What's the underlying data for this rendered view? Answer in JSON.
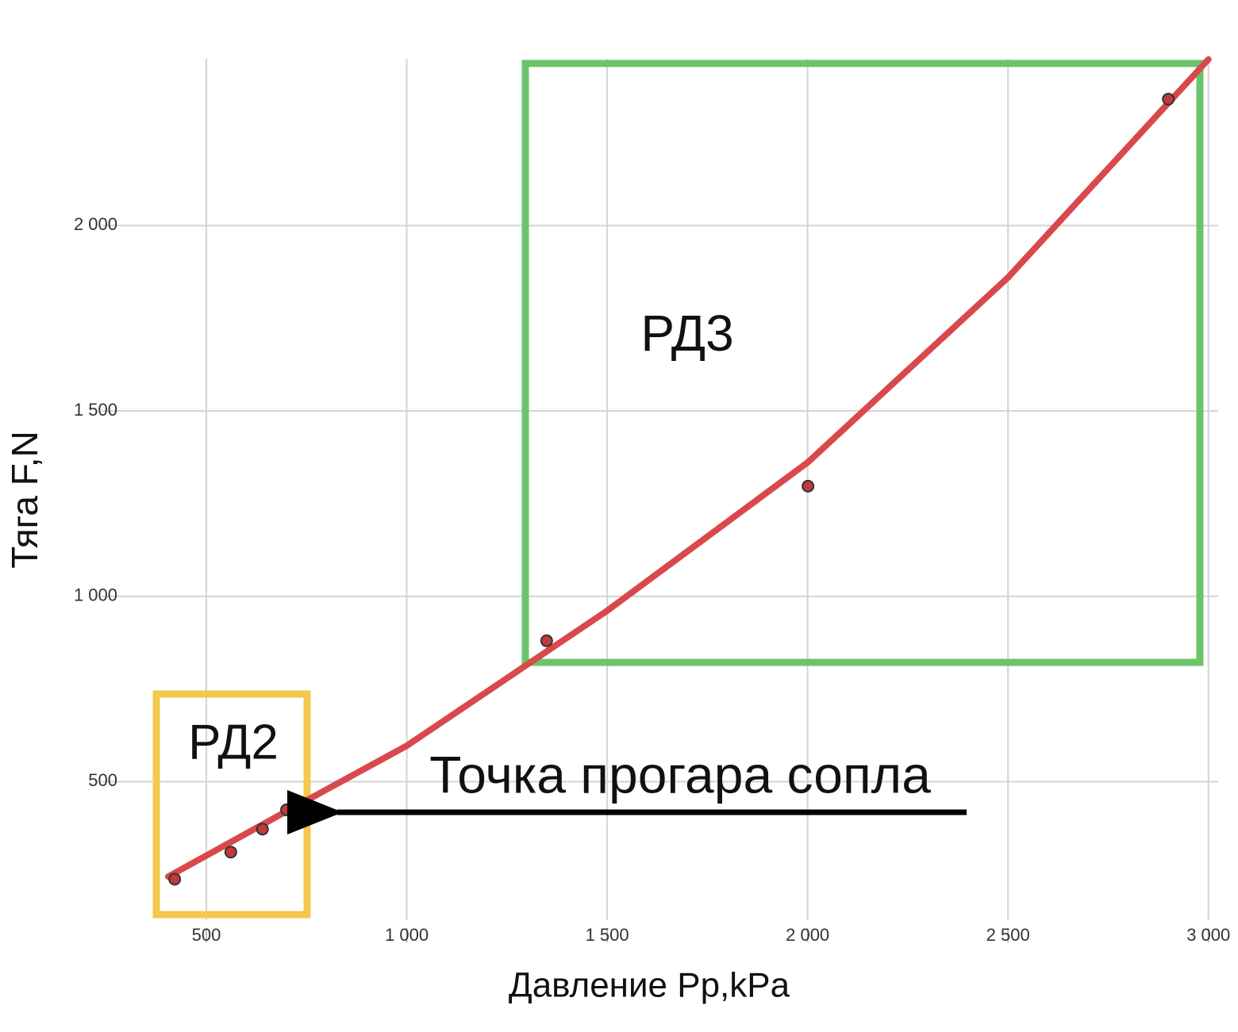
{
  "chart_data": {
    "type": "scatter",
    "xlabel": "Давление Pp,kPa",
    "ylabel": "Тяга F,N",
    "xlim": [
      300,
      3050
    ],
    "ylim": [
      150,
      2450
    ],
    "xticks": [
      500,
      {
        "value": 1000,
        "label": "1 000"
      },
      {
        "value": 1500,
        "label": "1 500"
      },
      {
        "value": 2000,
        "label": "2 000"
      },
      {
        "value": 2500,
        "label": "2 500"
      },
      {
        "value": 3000,
        "label": "3 000"
      }
    ],
    "yticks": [
      500,
      {
        "value": 1000,
        "label": "1 000"
      },
      {
        "value": 1500,
        "label": "1 500"
      },
      {
        "value": 2000,
        "label": "2 000"
      }
    ],
    "grid": true,
    "points": {
      "color": "#c0393b",
      "x": [
        421,
        561,
        640,
        700,
        1349,
        2001,
        2900
      ],
      "y": [
        237,
        310,
        372,
        424,
        880,
        1297,
        2341
      ]
    },
    "fit": {
      "color": "#d9484b",
      "x": [
        405,
        700,
        1000,
        1500,
        2000,
        2500,
        3000
      ],
      "y": [
        244,
        420,
        597,
        961,
        1361,
        1860,
        2448
      ]
    },
    "annotations": [
      "РД3",
      "РД2",
      "Точка прогара сопла"
    ]
  }
}
